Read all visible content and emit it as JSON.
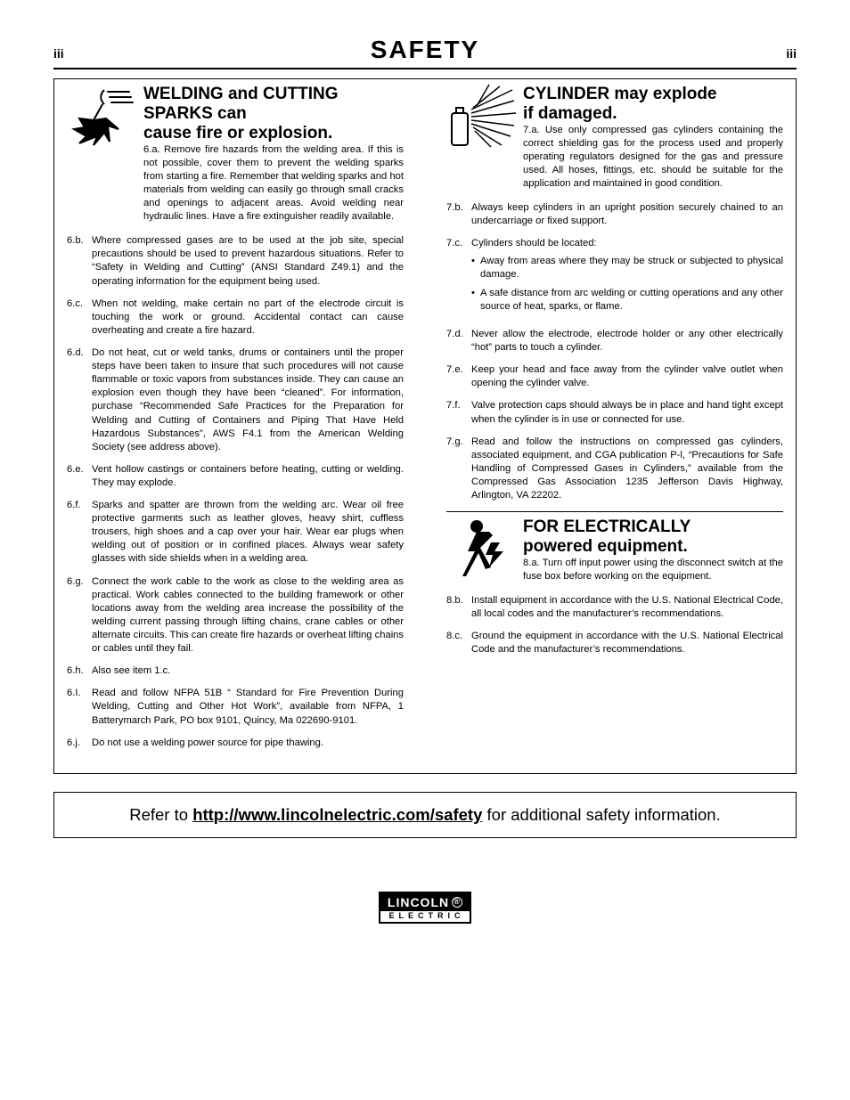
{
  "page": {
    "num_left": "iii",
    "title": "SAFETY",
    "num_right": "iii"
  },
  "section6": {
    "title_line1": "WELDING and CUTTING",
    "title_line2": "SPARKS can",
    "title_line3": "cause fire or explosion.",
    "first_label": "6.a.",
    "first_text_part1": "Remove fire hazards from the welding area. If this is not possible, cover them to prevent the welding sparks from starting a fire. Remember that welding sparks and hot materials from welding can easily go through small cracks and openings to adjacent areas. Avoid welding near hydraulic lines. Have a fire extinguisher readily available.",
    "items": [
      {
        "label": "6.b.",
        "text": "Where compressed gases are to be used at the job site, special precautions should be used to prevent hazardous situations. Refer to “Safety in Welding and Cutting” (ANSI Standard Z49.1) and the operating information for the equipment being used."
      },
      {
        "label": "6.c.",
        "text": "When not welding, make certain no part of the electrode circuit is touching the work or ground. Accidental contact can cause overheating and create a fire hazard."
      },
      {
        "label": "6.d.",
        "text": "Do not heat, cut or weld tanks, drums or containers until the proper steps have been taken to insure that such procedures will not cause flammable or toxic vapors from substances inside. They can cause an explosion even though they have been “cleaned”. For information, purchase “Recommended Safe Practices for the Preparation for Welding and Cutting of Containers and Piping That Have Held Hazardous Substances”, AWS F4.1 from the American Welding Society (see address above)."
      },
      {
        "label": "6.e.",
        "text": "Vent hollow castings or containers before heating, cutting or welding. They may explode."
      },
      {
        "label": "6.f.",
        "text": "Sparks and spatter are thrown from the welding arc. Wear oil free protective garments such as leather gloves, heavy shirt, cuffless trousers, high shoes and a cap over your hair. Wear ear plugs when welding out of position or in confined places. Always wear safety glasses with side shields when in a welding area."
      },
      {
        "label": "6.g.",
        "text": "Connect the work cable to the work as close to the welding area as practical. Work cables connected to the building framework or other locations away from the welding area increase the possibility of the welding current passing through lifting chains, crane cables or other alternate circuits. This can create fire hazards or overheat lifting chains or cables until they fail."
      },
      {
        "label": "6.h.",
        "text": "Also see item 1.c."
      },
      {
        "label": "6.I.",
        "text": "Read and follow NFPA 51B “ Standard for Fire Prevention During Welding, Cutting and Other Hot Work”, available from NFPA, 1 Batterymarch Park, PO box 9101, Quincy, Ma 022690-9101."
      },
      {
        "label": "6.j.",
        "text": "Do not use a welding power source for pipe thawing."
      }
    ]
  },
  "section7": {
    "title_line1": "CYLINDER may explode",
    "title_line2": "if damaged.",
    "first_label": "7.a.",
    "first_text": "Use only compressed gas cylinders containing the correct shielding gas for the process used and properly operating regulators designed for the gas and pressure used. All hoses, fittings, etc. should be suitable for the application and maintained in good condition.",
    "items": [
      {
        "label": "7.b.",
        "text": "Always keep cylinders in an upright position securely chained to an undercarriage or fixed support."
      },
      {
        "label": "7.c.",
        "text": "Cylinders should be located:",
        "subs": [
          "Away from areas where they may be struck or subjected to physical damage.",
          "A safe distance from arc welding or cutting operations and any other source of heat, sparks, or flame."
        ]
      },
      {
        "label": "7.d.",
        "text": "Never allow the electrode, electrode holder or any other electrically “hot” parts to touch a cylinder."
      },
      {
        "label": "7.e.",
        "text": "Keep your head and face away from the cylinder valve outlet when opening the cylinder valve."
      },
      {
        "label": "7.f.",
        "text": "Valve protection caps should always be in place and hand tight except when the cylinder is in use or connected for use."
      },
      {
        "label": "7.g.",
        "text": "Read and follow the instructions on compressed gas cylinders, associated equipment, and CGA publication P-l, “Precautions for Safe Handling of Compressed Gases in Cylinders,” available from the Compressed Gas Association 1235 Jefferson Davis Highway, Arlington, VA 22202."
      }
    ]
  },
  "section8": {
    "title_line1": "FOR ELECTRICALLY",
    "title_line2": "powered equipment.",
    "first_label": "8.a.",
    "first_text": "Turn off input power using the disconnect switch at the fuse box before working on the equipment.",
    "items": [
      {
        "label": "8.b.",
        "text": "Install equipment in accordance with the U.S. National Electrical Code, all local codes and the manufacturer’s recommendations."
      },
      {
        "label": "8.c.",
        "text": "Ground the equipment in accordance with the U.S. National Electrical Code and the manufacturer’s recommendations."
      }
    ]
  },
  "refer": {
    "prefix": "Refer to ",
    "url": "http://www.lincolnelectric.com/safety",
    "suffix": " for additional safety information."
  },
  "logo": {
    "top": "LINCOLN",
    "reg": "®",
    "bottom": "ELECTRIC"
  }
}
